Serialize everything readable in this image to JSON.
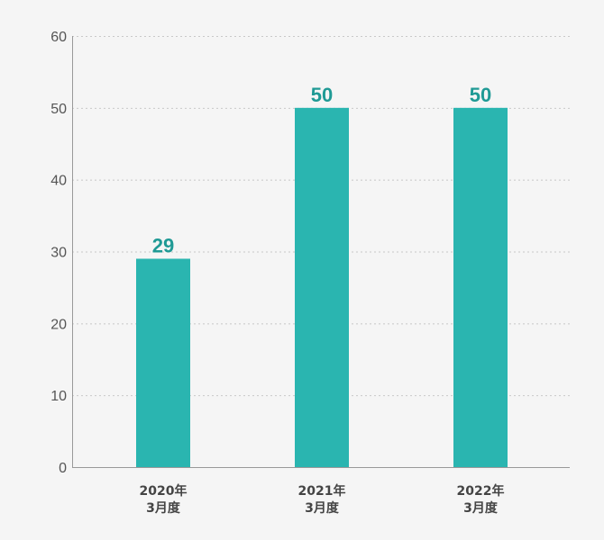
{
  "chart_data": {
    "type": "bar",
    "categories": [
      [
        "2020年",
        "3月度"
      ],
      [
        "2021年",
        "3月度"
      ],
      [
        "2022年",
        "3月度"
      ]
    ],
    "values": [
      29,
      50,
      50
    ],
    "data_labels": [
      "29",
      "50",
      "50"
    ],
    "y_ticks": [
      "0",
      "10",
      "20",
      "30",
      "40",
      "50",
      "60"
    ],
    "ylim": [
      0,
      60
    ],
    "y_tick_step": 10,
    "grid": true,
    "title": "",
    "xlabel": "",
    "ylabel": ""
  },
  "colors": {
    "bar": "#2ab5b0",
    "value_label": "#1f9a95",
    "background": "#f5f5f5"
  }
}
